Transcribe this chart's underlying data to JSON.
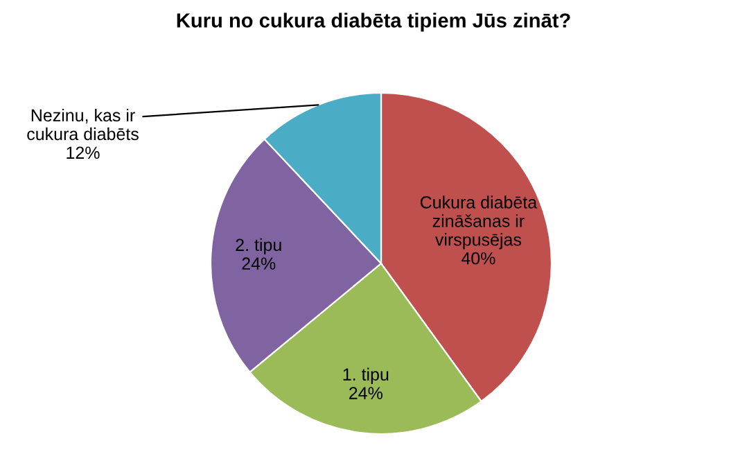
{
  "chart_data": {
    "type": "pie",
    "title": "Kuru no cukura diabēta tipiem Jūs zināt?",
    "categories": [
      "Cukura diabēta\nzināšanas ir\nvirspusējas",
      "1. tipu",
      "2. tipu",
      "Nezinu, kas ir\ncukura diabēts"
    ],
    "values": [
      40,
      24,
      24,
      12
    ],
    "value_labels": [
      "40%",
      "24%",
      "24%",
      "12%"
    ],
    "colors": [
      "#c0504d",
      "#9bbb59",
      "#8064a2",
      "#4bacc6"
    ],
    "legend": false
  }
}
